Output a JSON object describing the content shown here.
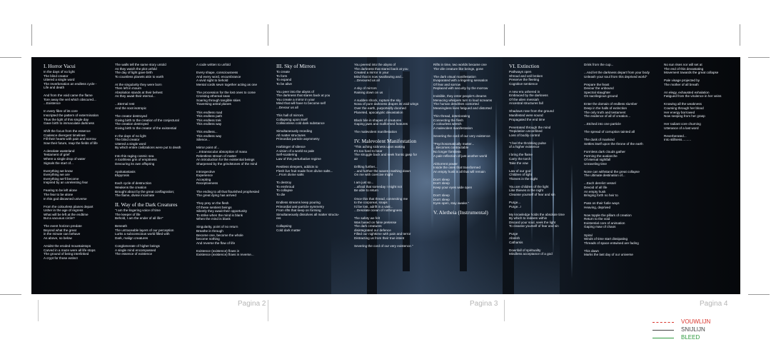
{
  "pages": [
    "Pagina 2",
    "Pagina 3",
    "Pagina 4"
  ],
  "legend": [
    {
      "label": "VOUWLIJN",
      "color": "#d9342b",
      "style": "dashed"
    },
    {
      "label": "SNIJLIJN",
      "color": "#444444",
      "style": "solid"
    },
    {
      "label": "BLEED",
      "color": "#2e9a3f",
      "style": "solid"
    }
  ],
  "columns": [
    {
      "heading": "I. Horror Vacui",
      "lines": [
        "In the days of no light",
        "The blind creator",
        "Uttered a single word",
        "The reverberation an endless cycle -",
        "Life and death",
        "",
        "And from the void came the flame",
        "Tore away the veil which obscured...",
        "...Existence",
        "",
        "In every fibre of its core",
        "Inscripted the pattern of extermination",
        "Thus the light of this single day",
        "Gave birth to immaculate darkness",
        "",
        "Shift the focus from the essence",
        "Coalesce divergent timelines",
        "Fill their hearts with pain and sorrow",
        "Sow their future, reap the fields of life",
        "",
        "A desolate wasteland",
        "Testament of grief",
        "Where a single drop of water",
        "Signals the start of...",
        "",
        "Everything we know",
        "Everything we are",
        "Everything we'll become",
        "Inspired by an unrelenting fear",
        "",
        "Fearing to be left alone",
        "The fear to be alone",
        "In this god disowned universe",
        "",
        "From the colourless planes depart",
        "Usher in the age of regress",
        "What will be left at the endtime",
        "But a vacuous circle?",
        "",
        "The event horizon predate",
        "Beyond what the great",
        "in the minute can behave",
        "As above, so below",
        "",
        "Amidst the eroded mountaintops",
        "Carved in a maze were all life stops",
        "The ground of being interlinked",
        "A crypt for those extinct"
      ]
    },
    {
      "heading": "",
      "lines": [
        "The walls tell the same story untold",
        "As they watch the plot unfold",
        "The day of light gave birth",
        "To countless planets akin to earth",
        "",
        "At the singularity they were born",
        "Then left in mourn",
        "Absolution stands at their behest",
        "As they await their eternal...",
        "",
        "...Eternal rest",
        "And the soot isotropic",
        "",
        "The creator destroyed",
        "Giving birth to the creation of the conjectural",
        "The creation destroyed",
        "Giving birth to the creator of the existential",
        "",
        "In the days of no light",
        "The blind creator",
        "Uttered a single word",
        "By which entire civilizations were put to death",
        "",
        "Into this raging cosmic sea",
        "A toothless grin of emptiness",
        "Devouring its own offspring",
        "",
        "Apokatastasis",
        "Ekpyrosis",
        "",
        "Each cycle of destruction",
        "Weakens the creation",
        "Brought about by the great conflagration;",
        "The flame, divine incarnate"
      ],
      "heading2": "II. Way of the Dark Creatures",
      "lines2": [
        "\"I am the lingering voice of time",
        "The keeper of life",
        "Behold, I am the ender of all life!\"",
        "",
        "Beneath",
        "The untraceable layers of our perception",
        "Lurks a subconscious world filled with",
        "Dark, malign creatures",
        "",
        "Conglomerate of higher beings",
        "A single mind encompassed",
        "The essence of existence"
      ]
    },
    {
      "heading": "",
      "lines": [
        "A code written to unfold",
        "",
        "Every shape, consciousness",
        "And every word, encumbrance",
        "A vivid sight to behold",
        "Mental cords sewn together acting as one",
        "",
        "The procession for the lost ones to come",
        "Crossing ethereal seas",
        "Soaring through tangible skies",
        "Traversing astral planes",
        "",
        "This endless road",
        "This endless path",
        "This endless trek",
        "This endless way",
        "",
        "This endless...",
        "This endless way",
        "Silence...",
        "",
        "Mirror point of...",
        "...Intransocular absorption of mana",
        "Relentless stream of matter",
        "An introduction for the existential beings",
        "Sharpened by the grindstones of the mind",
        "",
        "Introspective",
        "Experience",
        "Accepting",
        "Receptiveness",
        "",
        "The ending to all that flourished prophesied",
        "The great dying has arrived",
        "",
        "They prey on the flesh",
        "Of these sentient beings",
        "Silently they await their opportunity",
        "To strike when the mind is blank",
        "When the mind is blank",
        "",
        "Singularity, point of no return",
        "Breathe in through",
        "Become one, become the whole",
        "become nothing",
        "And reverse the flow of life",
        "",
        "Existence (existence) flows in",
        "Existence (existence) flows in reverse..."
      ]
    },
    {
      "heading": "III. Sky of Mirrors",
      "lines": [
        "To create",
        "To form",
        "To expand",
        "To be alive",
        "",
        "You peer into the abyss of",
        "The darkness that stares back at you",
        "You create a mirror in your",
        "Mind that will have to become self",
        "...Devour us all",
        "",
        "This hall of mirrors",
        "Collapsing upon itself",
        "Collisionless cold dark substance",
        "",
        "Simultaneously receding",
        "All matter structures",
        "Primordial particle asymmetry",
        "",
        "Harbinger of silence",
        "A vision of a world so pale",
        "Self-scattering",
        "Law of this perturbative regime",
        "",
        "Restless sleepers, addicts to",
        "Flesh live fruit made from divine salts...",
        "...From divine salts",
        "",
        "To destroy",
        "To enshroud",
        "To collapse",
        "To die",
        "",
        "Endless streams keep pouring",
        "Primordial anti-particle symmetry",
        "From rifts that keep on forming",
        "Simultaneously dissolves all matter structu-",
        "res",
        "",
        "Collapsing",
        "Cold dark matter"
      ]
    },
    {
      "heading": "",
      "lines": [
        "You peered into the abyss of",
        "The darkness that stared back at you",
        "Created a mirror in your",
        "Mind that is now swallowing and...",
        "...Devoured us all",
        "",
        "A sky of mirrors",
        "Raining down on us",
        "",
        "A sudden shock, rupture the sky",
        "Nova of pure darkness drapes its void wings",
        "Over the earth, purportedly doomed",
        "Planeted, apocalyptic devastation",
        "",
        "Black bile in shapes of creatures",
        "Gaping jaws and malformed features",
        "",
        "The malevolent manifestation"
      ],
      "heading2": "IV. Malevolent Manifestation",
      "lines2": [
        "\"This aching sickness upon waking",
        "It's too hard to bear",
        "The struggle back and seek frantic gasp for",
        "air",
        "",
        "Drifting further...",
        "...and further the waves crashing down",
        "On me with coercive might",
        "",
        "I am just so...",
        "...afraid that someday I might not",
        "Be able to return",
        "",
        "Once this that thread, connecting me",
        "to the corporeal, snaps",
        "I'd be lost, adrift in a vast...",
        "...Desolate ocean of nothingness",
        "",
        "The safety we felt",
        "Was based on false pretense",
        "The dark creatures",
        "disintegrated our defence",
        "Filled our nighttime with pain and terror",
        "Distracting us from their true intent",
        "",
        "Severing the cord of our very existence.\""
      ]
    },
    {
      "heading": "",
      "lines": [
        "Rifts in time, two worlds became one",
        "The vile creature like beings, gone",
        "",
        "The dark visual manifestation",
        "Evaporated with a lingering sensation",
        "Of fear and sorrow",
        "Replaced with security by the morrow",
        "",
        "Invisible, they enter people's dreams",
        "Menacing whispers turn to loud screams",
        "The human dendrites contorted",
        "Meaningless lives fatigued and distorted",
        "",
        "Thin thread, deteriorating",
        "Connecting the flesh",
        "A colourless wretch",
        "A malevolent manifestation",
        "",
        "Severing the cord of our very existence",
        "",
        "\"Psychosomatically matter...",
        "...Becomes contractable",
        "No longer formless",
        "A pale reflection of just another world",
        "",
        "Abhorrent power",
        "Inside the ones that transformed",
        "An empty husk is all that will remain",
        "",
        "Don't sleep",
        "Don't sleep",
        "Keep your eyes wide open",
        "",
        "Don't sleep",
        "Don't sleep",
        "Eyes open, stay awake.\""
      ],
      "heading2": "V. Aletheia (Instrumental)",
      "lines2": []
    },
    {
      "heading": "VI. Extinction",
      "lines": [
        "Pathways open",
        "Shroud and veil broken",
        "Preserve the fleeting",
        "Cognitive sentience",
        "",
        "A new era ushered in",
        "Embraced by the darkness",
        "Of the alien messiah",
        "Ancestral structures fall",
        "",
        "Shadows rose from the ground",
        "Manifested were sound",
        "Propagated the end time",
        "",
        "Penetrated through the mind",
        "Trepidation unconfined",
        "Loss of bodily control",
        "",
        "\"I feel the throbbing pulse",
        "of a higher existence",
        "",
        "I bring the flame",
        "Carry the torch",
        "Take the vow",
        "",
        "Law of our god",
        "Children of light",
        "Thieves in the night",
        "",
        "You are children of the light",
        "Like thieves in the night",
        "Cleanse yourself of fear and sin",
        "",
        "Purge...",
        "Purge...!",
        "",
        "My knowledge holds the absolute time",
        "By which to redeem within",
        "Discard your soul, seek the light",
        "To cleanse yourself of fear and sin",
        "",
        "Purge",
        "Abolish",
        "Catharsis",
        "",
        "Downfall of spirituality",
        "Mindless acceptance of a god"
      ]
    },
    {
      "heading": "",
      "lines": [
        "Drink from the cup...",
        "",
        "...And let the darkness depart from your body",
        "Unleash your soul from this deprived world\"",
        "",
        "Prepare the feast",
        "Devour the unbound",
        "Spectral slaughter",
        "On sacrilegious ground",
        "",
        "Enter the domain of endless slumber",
        "Deep in the halls of extinction",
        "The only truth and testament",
        "The evidence of all of creation...",
        "",
        "...Etched into one particle",
        "",
        "The spread of corruption tainted all",
        "",
        "The dusk of mankind",
        "Settles itself upon the throne of the earth",
        "",
        "Formless dark clouds gather",
        "Forming the avalanche",
        "Of eternal nightfall",
        "Unraveling time",
        "",
        "None can withstand the great collapse",
        "The ultimate destination of...",
        "",
        "...Each derelict vessel",
        "Devoid of all life",
        "An empty husk",
        "Bringing forth no heir to",
        "",
        "Pass on their futile ways",
        "Heaving, deprived",
        "",
        "Now topple the pillars of creation",
        "Return to the void",
        "Existential core of animation",
        "Gaping maw of chaos",
        "",
        "Spiral",
        "Winds of time start dissipating",
        "Threads of space entwined are fading",
        "",
        "This dawn",
        "Marks the last day of our universe"
      ]
    },
    {
      "heading": "",
      "lines": [
        "No sun rises nor will set at",
        "The end of this devastating",
        "Movement towards the great collapse",
        "",
        "Pale visage projected by",
        "The mother of all breath",
        "",
        "An elegy, exhausted exhalation",
        "Fatigued from the virulence in her veins",
        "",
        "Knowing all the weakness",
        "Coursing through her blood",
        "Her energy borrowed",
        "Now seeping from her grasp",
        "",
        "Her radiant core churning",
        "Utterance of a last word",
        "",
        "Reverberated...",
        "Into stillness.........."
      ]
    }
  ]
}
